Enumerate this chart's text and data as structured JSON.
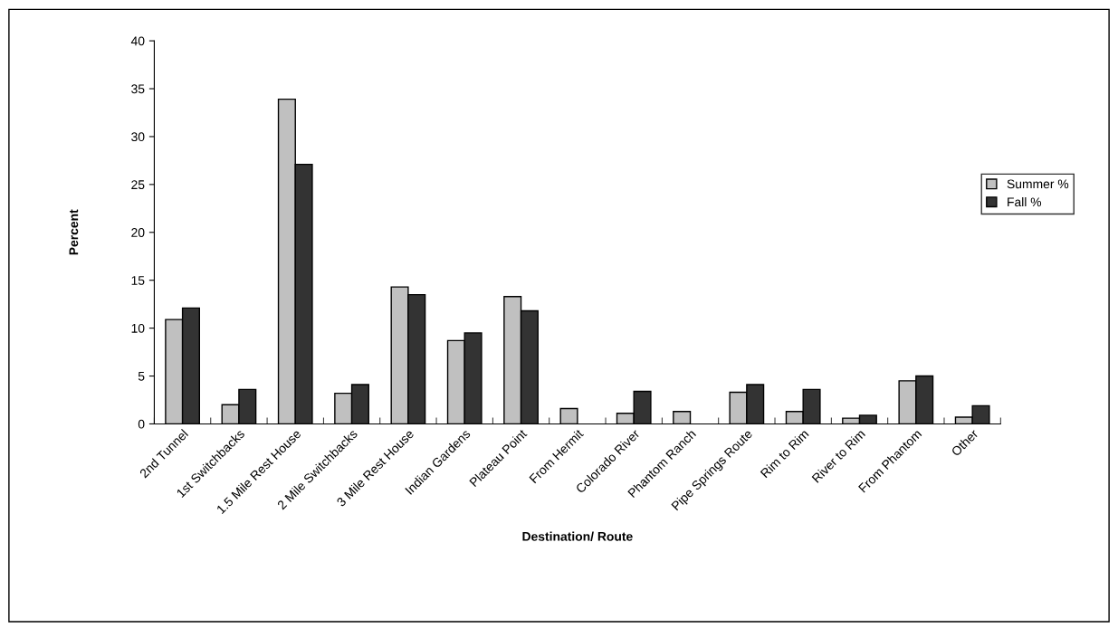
{
  "chart_data": {
    "type": "bar",
    "categories": [
      "2nd Tunnel",
      "1st Switchbacks",
      "1.5 Mile Rest House",
      "2 Mile Switchbacks",
      "3 Mile Rest House",
      "Indian Gardens",
      "Plateau Point",
      "From Hermit",
      "Colorado River",
      "Phantom Ranch",
      "Pipe Springs Route",
      "Rim to Rim",
      "River to Rim",
      "From Phantom",
      "Other"
    ],
    "series": [
      {
        "name": "Summer %",
        "color": "#c0c0c0",
        "values": [
          10.9,
          2.0,
          33.9,
          3.2,
          14.3,
          8.7,
          13.3,
          1.6,
          1.1,
          1.3,
          3.3,
          1.3,
          0.6,
          4.5,
          0.7
        ]
      },
      {
        "name": "Fall %",
        "color": "#333333",
        "values": [
          12.1,
          3.6,
          27.1,
          4.1,
          13.5,
          9.5,
          11.8,
          null,
          3.4,
          null,
          4.1,
          3.6,
          0.9,
          5.0,
          1.9
        ]
      }
    ],
    "xlabel": "Destination/ Route",
    "ylabel": "Percent",
    "ylim": [
      0,
      40
    ],
    "yticks": [
      0,
      5,
      10,
      15,
      20,
      25,
      30,
      35,
      40
    ],
    "grid": false,
    "legend": "right"
  }
}
